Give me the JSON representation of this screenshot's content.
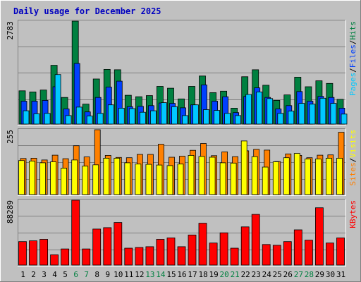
{
  "title": "Daily usage for December 2025",
  "colors": {
    "background": "#c0c0c0",
    "title": "#0000c0",
    "pages": "#00c8ff",
    "files": "#0040ff",
    "hits": "#008040",
    "visits": "#ffff00",
    "sites": "#ff8000",
    "kbytes": "#ff0000",
    "weekend_label": "#008040"
  },
  "chart_data": [
    {
      "type": "bar",
      "panel": "hits-files-pages",
      "ymax_label": "2783",
      "ylim": [
        0,
        2783
      ],
      "legend": [
        "Pages",
        "Files",
        "Hits"
      ],
      "categories": [
        "1",
        "2",
        "3",
        "4",
        "5",
        "6",
        "7",
        "8",
        "9",
        "10",
        "11",
        "12",
        "13",
        "14",
        "15",
        "16",
        "17",
        "18",
        "19",
        "20",
        "21",
        "22",
        "23",
        "24",
        "25",
        "26",
        "27",
        "28",
        "29",
        "30",
        "31"
      ],
      "series": [
        {
          "name": "Hits",
          "values": [
            900,
            870,
            920,
            1590,
            720,
            2783,
            540,
            1220,
            1480,
            1470,
            780,
            740,
            770,
            1020,
            970,
            680,
            1020,
            1300,
            850,
            890,
            430,
            1280,
            1470,
            1050,
            640,
            790,
            1270,
            1010,
            1170,
            1100,
            670
          ]
        },
        {
          "name": "Files",
          "values": [
            620,
            620,
            640,
            1010,
            410,
            1640,
            330,
            720,
            1000,
            1160,
            470,
            480,
            500,
            570,
            560,
            440,
            520,
            1060,
            620,
            740,
            310,
            750,
            980,
            720,
            410,
            500,
            880,
            620,
            750,
            720,
            430
          ]
        },
        {
          "name": "Pages",
          "values": [
            360,
            280,
            290,
            1340,
            230,
            460,
            220,
            290,
            520,
            430,
            420,
            320,
            360,
            580,
            470,
            230,
            520,
            390,
            370,
            290,
            230,
            800,
            870,
            690,
            290,
            350,
            560,
            540,
            700,
            560,
            270
          ]
        }
      ]
    },
    {
      "type": "bar",
      "panel": "sites-visits",
      "ymax_label": "255",
      "ylim": [
        0,
        255
      ],
      "legend": [
        "Sites",
        "Visits"
      ],
      "categories": [
        "1",
        "2",
        "3",
        "4",
        "5",
        "6",
        "7",
        "8",
        "9",
        "10",
        "11",
        "12",
        "13",
        "14",
        "15",
        "16",
        "17",
        "18",
        "19",
        "20",
        "21",
        "22",
        "23",
        "24",
        "25",
        "26",
        "27",
        "28",
        "29",
        "30",
        "31"
      ],
      "series": [
        {
          "name": "Sites",
          "values": [
            142,
            143,
            136,
            155,
            141,
            192,
            148,
            255,
            154,
            146,
            145,
            158,
            158,
            198,
            147,
            151,
            174,
            201,
            153,
            168,
            149,
            172,
            178,
            175,
            130,
            160,
            154,
            145,
            155,
            156,
            245
          ]
        },
        {
          "name": "Visits",
          "values": [
            134,
            132,
            125,
            129,
            104,
            136,
            112,
            117,
            143,
            143,
            125,
            120,
            119,
            116,
            114,
            120,
            154,
            150,
            147,
            125,
            124,
            211,
            149,
            108,
            129,
            145,
            162,
            140,
            140,
            143,
            143
          ]
        }
      ]
    },
    {
      "type": "bar",
      "panel": "kbytes",
      "ymax_label": "88289",
      "ylim": [
        0,
        88289
      ],
      "legend": [
        "KBytes"
      ],
      "categories": [
        "1",
        "2",
        "3",
        "4",
        "5",
        "6",
        "7",
        "8",
        "9",
        "10",
        "11",
        "12",
        "13",
        "14",
        "15",
        "16",
        "17",
        "18",
        "19",
        "20",
        "21",
        "22",
        "23",
        "24",
        "25",
        "26",
        "27",
        "28",
        "29",
        "30",
        "31"
      ],
      "weekend_days": [
        "6",
        "7",
        "13",
        "14",
        "20",
        "21",
        "27",
        "28"
      ],
      "series": [
        {
          "name": "KBytes",
          "values": [
            32000,
            33000,
            35000,
            14000,
            22000,
            88289,
            22000,
            49000,
            51000,
            58000,
            23000,
            24000,
            25000,
            35000,
            37000,
            25000,
            41000,
            57000,
            30000,
            44000,
            23000,
            52000,
            69000,
            28000,
            27000,
            32000,
            48000,
            34000,
            78000,
            30000,
            37000
          ]
        }
      ]
    }
  ]
}
